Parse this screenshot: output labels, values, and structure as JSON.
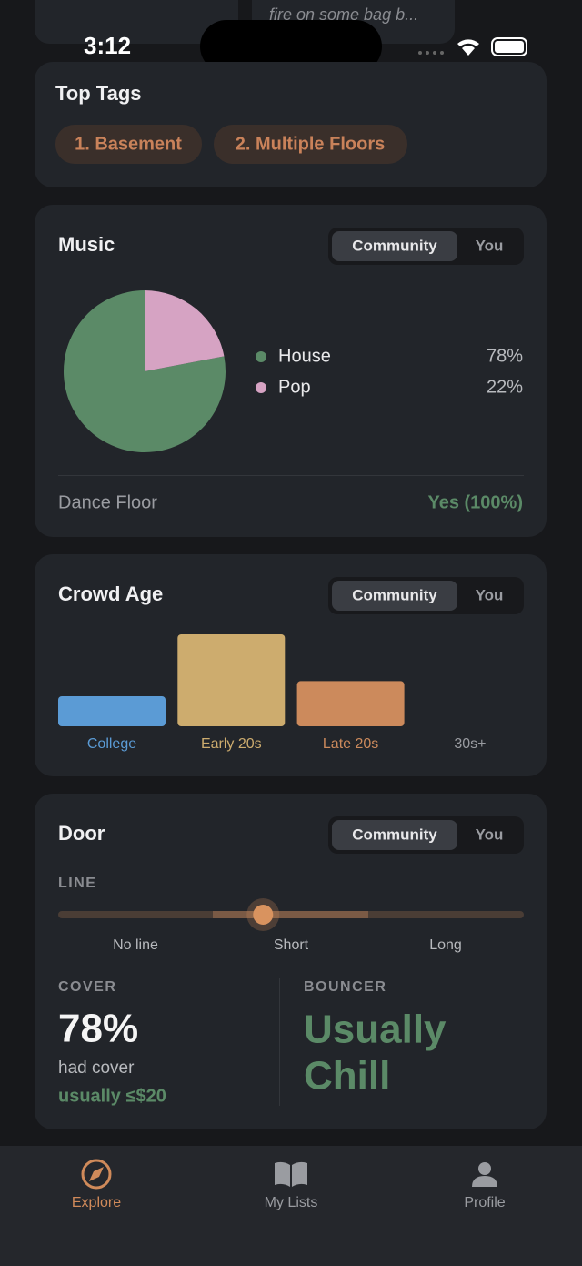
{
  "status_bar": {
    "time": "3:12"
  },
  "top_snippet": {
    "text": "fire on some bag b..."
  },
  "top_tags": {
    "title": "Top Tags",
    "tags": [
      "1. Basement",
      "2. Multiple Floors"
    ]
  },
  "music": {
    "title": "Music",
    "toggle": [
      "Community",
      "You"
    ],
    "chart_data": {
      "type": "pie",
      "categories": [
        "House",
        "Pop"
      ],
      "values": [
        78,
        22
      ],
      "value_labels": [
        "78%",
        "22%"
      ],
      "colors": [
        "#5b8a67",
        "#d6a3c3"
      ]
    },
    "dance_floor": {
      "label": "Dance Floor",
      "value": "Yes (100%)"
    }
  },
  "crowd_age": {
    "title": "Crowd Age",
    "toggle": [
      "Community",
      "You"
    ],
    "chart_data": {
      "type": "bar",
      "categories": [
        "College",
        "Early 20s",
        "Late 20s",
        "30s+"
      ],
      "values": [
        18,
        55,
        27,
        0
      ],
      "colors": [
        "#5b9bd5",
        "#cdac6e",
        "#cc8a5c",
        "#9a9ca1"
      ]
    }
  },
  "door": {
    "title": "Door",
    "toggle": [
      "Community",
      "You"
    ],
    "line": {
      "label": "LINE",
      "position": 44,
      "stops": [
        "No line",
        "Short",
        "Long"
      ]
    },
    "cover": {
      "label": "COVER",
      "value": "78%",
      "note": "had cover",
      "detail": "usually ≤$20"
    },
    "bouncer": {
      "label": "BOUNCER",
      "value_lines": [
        "Usually",
        "Chill"
      ]
    }
  },
  "tab_bar": {
    "tabs": [
      "Explore",
      "My Lists",
      "Profile"
    ]
  }
}
